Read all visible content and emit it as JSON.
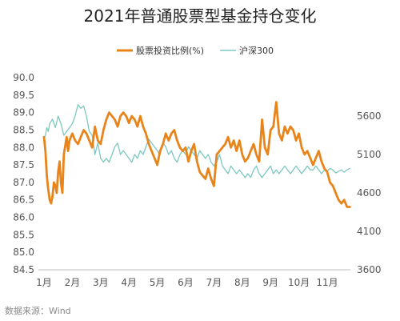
{
  "chart_data": {
    "type": "line",
    "title": "2021年普通股票型基金持仓变化",
    "source": "数据来源：Wind",
    "legend_position": "top-center",
    "grid": false,
    "x_axis": {
      "tick_labels": [
        "1月",
        "2月",
        "3月",
        "4月",
        "5月",
        "6月",
        "7月",
        "8月",
        "9月",
        "10月",
        "11月"
      ]
    },
    "y_left": {
      "range": [
        84.5,
        90.0
      ],
      "tick_labels": [
        "90.0",
        "89.5",
        "89.0",
        "88.5",
        "88.0",
        "87.5",
        "87.0",
        "86.5",
        "86.0",
        "85.5",
        "85.0",
        "84.5"
      ]
    },
    "y_right": {
      "range": [
        3600,
        6100
      ],
      "tick_labels": [
        "5600",
        "5100",
        "4600",
        "4100",
        "3600"
      ]
    },
    "series": [
      {
        "name": "股票投资比例(%)",
        "axis": "left",
        "color": "#E8841A",
        "points": [
          [
            0.0,
            88.3
          ],
          [
            0.05,
            87.9
          ],
          [
            0.1,
            87.2
          ],
          [
            0.15,
            86.8
          ],
          [
            0.2,
            86.5
          ],
          [
            0.25,
            86.4
          ],
          [
            0.3,
            86.6
          ],
          [
            0.35,
            87.0
          ],
          [
            0.4,
            86.9
          ],
          [
            0.45,
            86.7
          ],
          [
            0.5,
            87.3
          ],
          [
            0.55,
            87.6
          ],
          [
            0.6,
            87.0
          ],
          [
            0.65,
            86.7
          ],
          [
            0.7,
            87.8
          ],
          [
            0.8,
            88.3
          ],
          [
            0.85,
            87.9
          ],
          [
            0.9,
            88.2
          ],
          [
            1.0,
            88.4
          ],
          [
            1.1,
            88.2
          ],
          [
            1.2,
            88.1
          ],
          [
            1.3,
            88.3
          ],
          [
            1.4,
            88.5
          ],
          [
            1.5,
            88.4
          ],
          [
            1.6,
            88.2
          ],
          [
            1.7,
            88.0
          ],
          [
            1.8,
            88.6
          ],
          [
            1.9,
            88.2
          ],
          [
            2.0,
            88.1
          ],
          [
            2.1,
            88.5
          ],
          [
            2.2,
            88.8
          ],
          [
            2.3,
            89.0
          ],
          [
            2.4,
            88.9
          ],
          [
            2.5,
            88.8
          ],
          [
            2.6,
            88.6
          ],
          [
            2.7,
            88.9
          ],
          [
            2.8,
            89.0
          ],
          [
            2.9,
            88.9
          ],
          [
            3.0,
            88.7
          ],
          [
            3.1,
            88.9
          ],
          [
            3.2,
            88.8
          ],
          [
            3.3,
            88.6
          ],
          [
            3.4,
            88.9
          ],
          [
            3.5,
            88.6
          ],
          [
            3.6,
            88.4
          ],
          [
            3.7,
            88.1
          ],
          [
            3.8,
            87.9
          ],
          [
            3.9,
            87.7
          ],
          [
            4.0,
            87.5
          ],
          [
            4.1,
            87.9
          ],
          [
            4.2,
            88.1
          ],
          [
            4.3,
            88.4
          ],
          [
            4.4,
            88.2
          ],
          [
            4.5,
            88.4
          ],
          [
            4.6,
            88.5
          ],
          [
            4.7,
            88.2
          ],
          [
            4.8,
            88.0
          ],
          [
            4.9,
            87.9
          ],
          [
            5.0,
            88.0
          ],
          [
            5.1,
            87.6
          ],
          [
            5.2,
            87.9
          ],
          [
            5.3,
            88.1
          ],
          [
            5.4,
            87.6
          ],
          [
            5.5,
            87.3
          ],
          [
            5.6,
            87.2
          ],
          [
            5.7,
            87.1
          ],
          [
            5.8,
            87.4
          ],
          [
            5.9,
            87.1
          ],
          [
            6.0,
            86.9
          ],
          [
            6.1,
            87.8
          ],
          [
            6.2,
            87.9
          ],
          [
            6.3,
            88.0
          ],
          [
            6.4,
            88.1
          ],
          [
            6.5,
            88.3
          ],
          [
            6.6,
            88.0
          ],
          [
            6.7,
            88.2
          ],
          [
            6.8,
            87.9
          ],
          [
            6.9,
            88.2
          ],
          [
            7.0,
            87.8
          ],
          [
            7.1,
            87.6
          ],
          [
            7.2,
            87.7
          ],
          [
            7.3,
            87.9
          ],
          [
            7.4,
            88.1
          ],
          [
            7.5,
            87.8
          ],
          [
            7.6,
            87.6
          ],
          [
            7.7,
            88.8
          ],
          [
            7.8,
            88.0
          ],
          [
            7.9,
            87.8
          ],
          [
            8.0,
            88.5
          ],
          [
            8.1,
            88.6
          ],
          [
            8.2,
            89.3
          ],
          [
            8.3,
            88.4
          ],
          [
            8.4,
            88.2
          ],
          [
            8.5,
            88.6
          ],
          [
            8.6,
            88.4
          ],
          [
            8.7,
            88.6
          ],
          [
            8.8,
            88.5
          ],
          [
            8.9,
            88.2
          ],
          [
            9.0,
            88.4
          ],
          [
            9.1,
            88.0
          ],
          [
            9.2,
            87.8
          ],
          [
            9.3,
            87.9
          ],
          [
            9.4,
            87.7
          ],
          [
            9.5,
            87.5
          ],
          [
            9.6,
            87.7
          ],
          [
            9.7,
            87.9
          ],
          [
            9.8,
            87.6
          ],
          [
            9.9,
            87.4
          ],
          [
            10.0,
            87.3
          ],
          [
            10.1,
            87.0
          ],
          [
            10.2,
            86.9
          ],
          [
            10.3,
            86.7
          ],
          [
            10.4,
            86.5
          ],
          [
            10.5,
            86.4
          ],
          [
            10.6,
            86.5
          ],
          [
            10.7,
            86.3
          ],
          [
            10.8,
            86.3
          ]
        ]
      },
      {
        "name": "沪深300",
        "axis": "right",
        "color": "#7CC8C0",
        "points": [
          [
            0.0,
            5300
          ],
          [
            0.05,
            5350
          ],
          [
            0.1,
            5450
          ],
          [
            0.15,
            5400
          ],
          [
            0.2,
            5500
          ],
          [
            0.3,
            5560
          ],
          [
            0.4,
            5450
          ],
          [
            0.5,
            5600
          ],
          [
            0.6,
            5500
          ],
          [
            0.7,
            5350
          ],
          [
            0.8,
            5400
          ],
          [
            0.9,
            5450
          ],
          [
            1.0,
            5500
          ],
          [
            1.1,
            5600
          ],
          [
            1.2,
            5750
          ],
          [
            1.3,
            5700
          ],
          [
            1.4,
            5730
          ],
          [
            1.5,
            5600
          ],
          [
            1.6,
            5400
          ],
          [
            1.7,
            5350
          ],
          [
            1.8,
            5100
          ],
          [
            1.9,
            5250
          ],
          [
            2.0,
            5050
          ],
          [
            2.1,
            5000
          ],
          [
            2.2,
            5050
          ],
          [
            2.3,
            5000
          ],
          [
            2.4,
            5100
          ],
          [
            2.5,
            5200
          ],
          [
            2.6,
            5250
          ],
          [
            2.7,
            5100
          ],
          [
            2.8,
            5150
          ],
          [
            2.9,
            5100
          ],
          [
            3.0,
            5050
          ],
          [
            3.1,
            5000
          ],
          [
            3.2,
            5100
          ],
          [
            3.3,
            5050
          ],
          [
            3.4,
            5150
          ],
          [
            3.5,
            5100
          ],
          [
            3.6,
            5200
          ],
          [
            3.7,
            5300
          ],
          [
            3.8,
            5250
          ],
          [
            3.9,
            5200
          ],
          [
            4.0,
            5150
          ],
          [
            4.1,
            5100
          ],
          [
            4.2,
            5250
          ],
          [
            4.3,
            5200
          ],
          [
            4.4,
            5100
          ],
          [
            4.5,
            5150
          ],
          [
            4.6,
            5050
          ],
          [
            4.7,
            5000
          ],
          [
            4.8,
            5100
          ],
          [
            4.9,
            5150
          ],
          [
            5.0,
            5100
          ],
          [
            5.1,
            5200
          ],
          [
            5.2,
            5150
          ],
          [
            5.3,
            5100
          ],
          [
            5.4,
            5050
          ],
          [
            5.5,
            5150
          ],
          [
            5.6,
            5100
          ],
          [
            5.7,
            5050
          ],
          [
            5.8,
            5100
          ],
          [
            5.9,
            5000
          ],
          [
            6.0,
            4950
          ],
          [
            6.1,
            5000
          ],
          [
            6.2,
            5100
          ],
          [
            6.3,
            4950
          ],
          [
            6.4,
            4900
          ],
          [
            6.5,
            4850
          ],
          [
            6.6,
            4950
          ],
          [
            6.7,
            4900
          ],
          [
            6.8,
            4850
          ],
          [
            6.9,
            4900
          ],
          [
            7.0,
            4850
          ],
          [
            7.1,
            4800
          ],
          [
            7.2,
            4850
          ],
          [
            7.3,
            4800
          ],
          [
            7.4,
            4900
          ],
          [
            7.5,
            4950
          ],
          [
            7.6,
            4850
          ],
          [
            7.7,
            4800
          ],
          [
            7.8,
            4850
          ],
          [
            7.9,
            4900
          ],
          [
            8.0,
            4950
          ],
          [
            8.1,
            4850
          ],
          [
            8.2,
            4900
          ],
          [
            8.3,
            4850
          ],
          [
            8.4,
            4900
          ],
          [
            8.5,
            4950
          ],
          [
            8.6,
            4900
          ],
          [
            8.7,
            4850
          ],
          [
            8.8,
            4900
          ],
          [
            8.9,
            4950
          ],
          [
            9.0,
            4900
          ],
          [
            9.1,
            4850
          ],
          [
            9.2,
            4900
          ],
          [
            9.3,
            4950
          ],
          [
            9.4,
            4900
          ],
          [
            9.5,
            4900
          ],
          [
            9.6,
            4950
          ],
          [
            9.7,
            4900
          ],
          [
            9.8,
            4850
          ],
          [
            9.9,
            4900
          ],
          [
            10.0,
            4880
          ],
          [
            10.1,
            4920
          ],
          [
            10.2,
            4900
          ],
          [
            10.3,
            4860
          ],
          [
            10.4,
            4880
          ],
          [
            10.5,
            4900
          ],
          [
            10.6,
            4870
          ],
          [
            10.7,
            4900
          ],
          [
            10.8,
            4920
          ]
        ]
      }
    ]
  }
}
